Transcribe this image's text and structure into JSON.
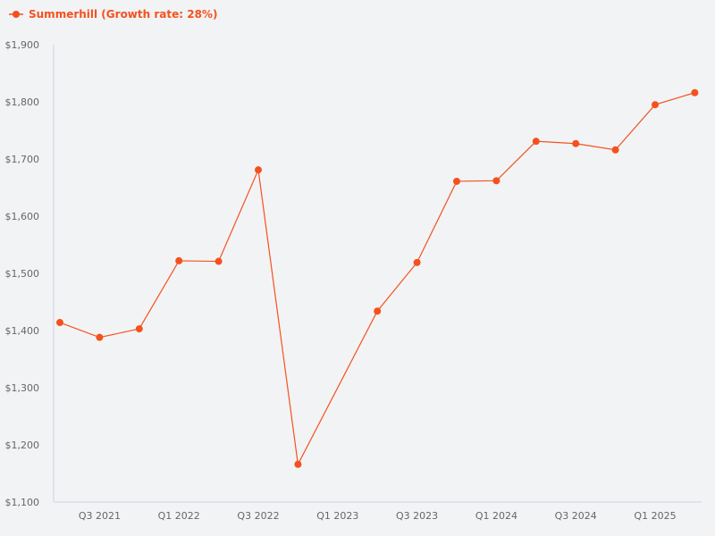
{
  "legend": {
    "label": "Summerhill (Growth rate: 28%)",
    "color": "#f4511e"
  },
  "chart_data": {
    "type": "line",
    "title": "",
    "xlabel": "",
    "ylabel": "",
    "ylim": [
      1100,
      1900
    ],
    "y_ticks": [
      "$1,100",
      "$1,200",
      "$1,300",
      "$1,400",
      "$1,500",
      "$1,600",
      "$1,700",
      "$1,800",
      "$1,900"
    ],
    "x_tick_labels": [
      "Q3 2021",
      "Q1 2022",
      "Q3 2022",
      "Q1 2023",
      "Q3 2023",
      "Q1 2024",
      "Q3 2024",
      "Q1 2025"
    ],
    "grid": false,
    "legend_position": "top-left",
    "categories": [
      "Q2 2021",
      "Q3 2021",
      "Q4 2021",
      "Q1 2022",
      "Q2 2022",
      "Q3 2022",
      "Q4 2022",
      "Q1 2023",
      "Q2 2023",
      "Q3 2023",
      "Q4 2023",
      "Q1 2024",
      "Q2 2024",
      "Q3 2024",
      "Q4 2024",
      "Q1 2025",
      "Q2 2025"
    ],
    "series": [
      {
        "name": "Summerhill (Growth rate: 28%)",
        "color": "#f4511e",
        "values": [
          1414,
          1388,
          1403,
          1522,
          1521,
          1681,
          1166,
          null,
          1434,
          1519,
          1661,
          1662,
          1731,
          1727,
          1716,
          1795,
          1816
        ]
      }
    ]
  }
}
